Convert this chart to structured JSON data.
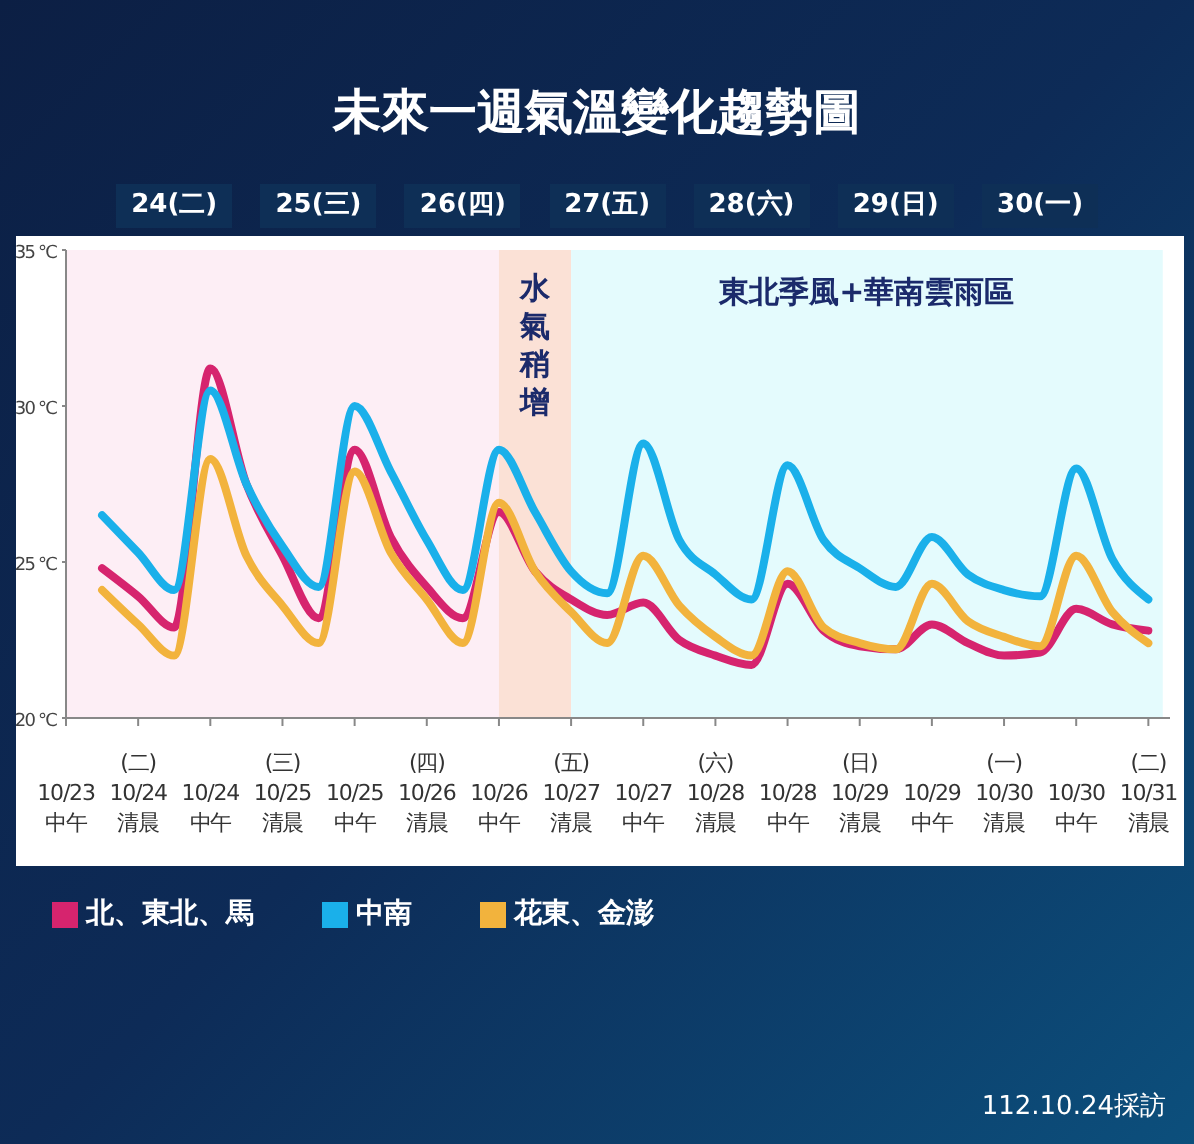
{
  "chart_data": {
    "type": "line",
    "title": "未來一週氣溫變化趨勢圖",
    "categories": [
      "10/23\n中午",
      null,
      "(二)\n10/24\n清晨",
      null,
      "10/24\n中午",
      null,
      "(三)\n10/25\n清晨",
      null,
      "10/25\n中午",
      null,
      "(四)\n10/26\n清晨",
      null,
      "10/26\n中午",
      null,
      "(五)\n10/27\n清晨",
      null,
      "10/27\n中午",
      null,
      "(六)\n10/28\n清晨",
      null,
      "10/28\n中午",
      null,
      "(日)\n10/29\n清晨",
      null,
      "10/29\n中午",
      null,
      "(一)\n10/30\n清晨",
      null,
      "10/30\n中午",
      null,
      "(二)\n10/31\n清晨"
    ],
    "ylim": [
      20,
      35
    ],
    "yticks": [
      {
        "value": 20,
        "label": "20 °C"
      },
      {
        "value": 25,
        "label": "25 °C"
      },
      {
        "value": 30,
        "label": "30 °C"
      },
      {
        "value": 35,
        "label": "35 °C"
      }
    ],
    "grid": false,
    "legend": "bottom",
    "marker": "none",
    "line_style": "solid",
    "bands": [
      {
        "axis": "x",
        "from": "10/23\n中午",
        "to": "10/26\n中午",
        "label": null,
        "color": "#fdeef5"
      },
      {
        "axis": "x",
        "from": "10/26\n中午",
        "to": "(五)\n10/27\n清晨",
        "label": "水氣稍增",
        "color": "#fbe1d6"
      },
      {
        "axis": "x",
        "from": "(五)\n10/27\n清晨",
        "to": "(二)\n10/31\n清晨",
        "label": "東北季風+華南雲雨區",
        "color": "#e4fbfd"
      }
    ],
    "series": [
      {
        "name": "北、東北、馬",
        "color": "#d6246e",
        "values": [
          null,
          24.8,
          23.9,
          22.9,
          31.2,
          27.5,
          25.2,
          23.2,
          28.6,
          25.8,
          24.2,
          23.2,
          26.6,
          24.7,
          23.8,
          23.3,
          23.7,
          22.5,
          22.0,
          21.7,
          24.3,
          22.8,
          22.3,
          22.2,
          23.0,
          22.4,
          22.0,
          22.1,
          23.5,
          23.0,
          22.8
        ]
      },
      {
        "name": "中南",
        "color": "#1ab0ea",
        "values": [
          null,
          26.5,
          25.3,
          24.1,
          30.5,
          27.5,
          25.5,
          24.2,
          30.0,
          27.9,
          25.7,
          24.1,
          28.6,
          26.6,
          24.7,
          24.0,
          28.8,
          25.7,
          24.6,
          23.8,
          28.1,
          25.7,
          24.8,
          24.2,
          25.8,
          24.6,
          24.1,
          23.9,
          28.0,
          25.1,
          23.8
        ]
      },
      {
        "name": "花東、金澎",
        "color": "#f2b33d",
        "values": [
          null,
          24.1,
          23.0,
          22.0,
          28.3,
          25.2,
          23.6,
          22.4,
          27.9,
          25.3,
          23.8,
          22.4,
          26.9,
          24.7,
          23.4,
          22.4,
          25.2,
          23.6,
          22.6,
          22.0,
          24.7,
          22.9,
          22.4,
          22.2,
          24.3,
          23.1,
          22.6,
          22.3,
          25.2,
          23.4,
          22.4
        ]
      }
    ],
    "annotations": [
      "24(二)",
      "25(三)",
      "26(四)",
      "27(五)",
      "28(六)",
      "29(日)",
      "30(一)",
      "112.10.24採訪"
    ]
  }
}
